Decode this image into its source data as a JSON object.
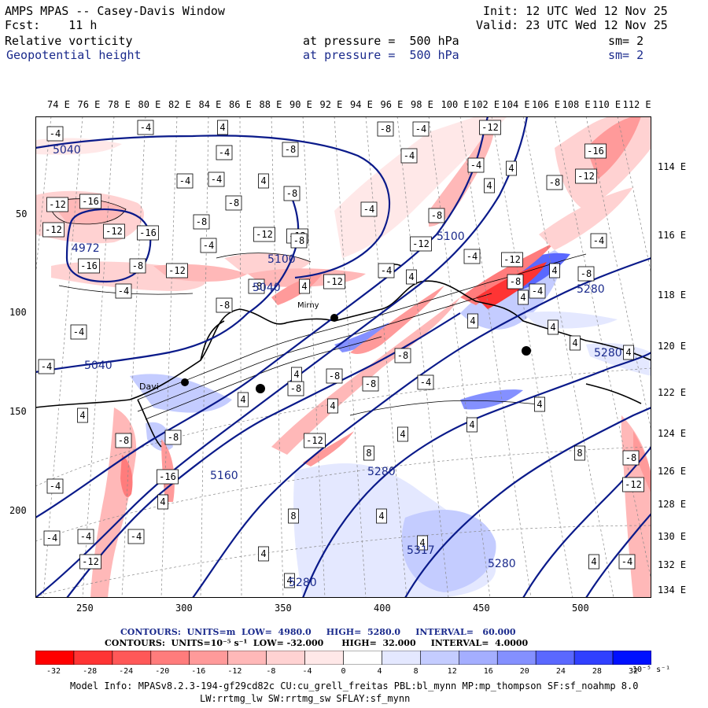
{
  "header": {
    "title": "AMPS MPAS -- Casey-Davis Window",
    "fcst": "Fcst:    11 h",
    "init": "Init: 12 UTC Wed 12 Nov 25",
    "valid": "Valid: 23 UTC Wed 12 Nov 25",
    "field1": "Relative vorticity",
    "field1_level": "at pressure =  500 hPa",
    "field1_sm": "sm= 2",
    "field2": "Geopotential height",
    "field2_level": "at pressure =  500 hPa",
    "field2_sm": "sm= 2"
  },
  "axes": {
    "top_lon": [
      "74 E",
      "76 E",
      "78 E",
      "80 E",
      "82 E",
      "84 E",
      "86 E",
      "88 E",
      "90 E",
      "92 E",
      "94 E",
      "96 E",
      "98 E",
      "100 E",
      "102 E",
      "104 E",
      "106 E",
      "108 E",
      "110 E",
      "112 E"
    ],
    "right_lon": [
      "114 E",
      "116 E",
      "118 E",
      "120 E",
      "122 E",
      "124 E",
      "126 E",
      "128 E",
      "130 E",
      "132 E",
      "134 E"
    ],
    "left_ticks": [
      "50",
      "100",
      "150",
      "200"
    ],
    "bottom_ticks": [
      "250",
      "300",
      "350",
      "400",
      "450",
      "500"
    ]
  },
  "map_labels": {
    "height_labels": [
      "5040",
      "4972",
      "5040",
      "5100",
      "5040",
      "5160",
      "5280",
      "5280",
      "5280",
      "5317",
      "5280",
      "5280",
      "5100"
    ],
    "stations": [
      "Davi",
      "Mirny"
    ]
  },
  "contours": {
    "line1": "CONTOURS:  UNITS=m  LOW=  4980.0     HIGH=  5280.0     INTERVAL=   60.000",
    "line2": "CONTOURS:  UNITS=10⁻⁵ s⁻¹  LOW= -32.000      HIGH=  32.000     INTERVAL=  4.0000"
  },
  "colorbar": {
    "labels": [
      "-32",
      "-28",
      "-24",
      "-20",
      "-16",
      "-12",
      "-8",
      "-4",
      "0",
      "4",
      "8",
      "12",
      "16",
      "20",
      "24",
      "28",
      "32"
    ],
    "unit": "10⁻⁵ s⁻¹",
    "colors": [
      "#ff0000",
      "#ff3434",
      "#ff5858",
      "#ff7c7c",
      "#ff9a9a",
      "#ffb8b8",
      "#ffd2d2",
      "#ffe8e8",
      "#ffffff",
      "#ffffff",
      "#e4e8ff",
      "#c4ccff",
      "#a4aeff",
      "#8490ff",
      "#5a68ff",
      "#3040ff",
      "#0010ff"
    ]
  },
  "model_info": {
    "line1": "Model Info: MPASv8.2.3-194-gf29cd82c CU:cu_grell_freitas PBL:bl_mynn MP:mp_thompson SF:sf_noahmp 8.0",
    "line2": "LW:rrtmg_lw SW:rrtmg_sw SFLAY:sf_mynn"
  }
}
